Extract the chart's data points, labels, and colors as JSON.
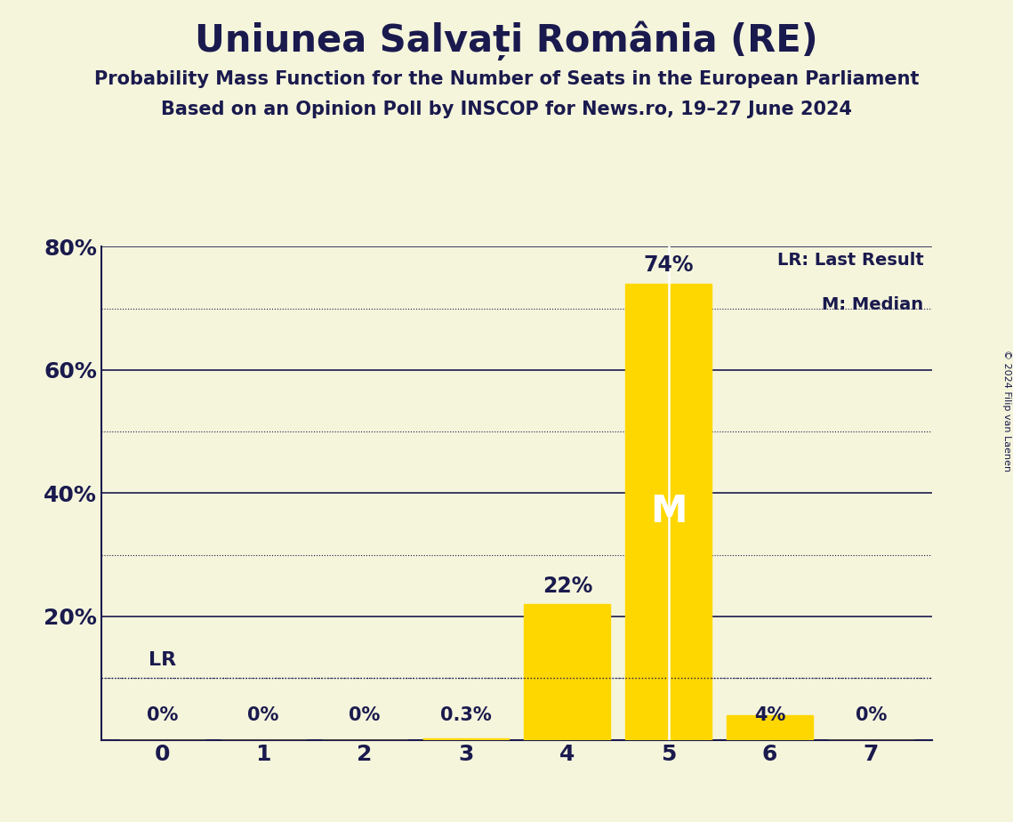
{
  "title": "Uniunea Salvați România (RE)",
  "subtitle1": "Probability Mass Function for the Number of Seats in the European Parliament",
  "subtitle2": "Based on an Opinion Poll by INSCOP for News.ro, 19–27 June 2024",
  "copyright": "© 2024 Filip van Laenen",
  "categories": [
    0,
    1,
    2,
    3,
    4,
    5,
    6,
    7
  ],
  "values": [
    0.0,
    0.0,
    0.0,
    0.3,
    22.0,
    74.0,
    4.0,
    0.0
  ],
  "bar_color": "#FFD700",
  "background_color": "#F5F5DC",
  "text_color": "#1a1a4e",
  "median_seat": 5,
  "lr_value": 10.0,
  "legend_lr": "LR: Last Result",
  "legend_m": "M: Median",
  "solid_yticks": [
    20,
    40,
    60,
    80
  ],
  "dotted_yticks": [
    10,
    30,
    50,
    70
  ],
  "ylim": [
    0,
    80
  ],
  "bar_labels": [
    "0%",
    "0%",
    "0%",
    "0.3%",
    "22%",
    "74%",
    "4%",
    "0%"
  ],
  "bar_label_above": [
    false,
    false,
    false,
    false,
    true,
    true,
    false,
    false
  ]
}
